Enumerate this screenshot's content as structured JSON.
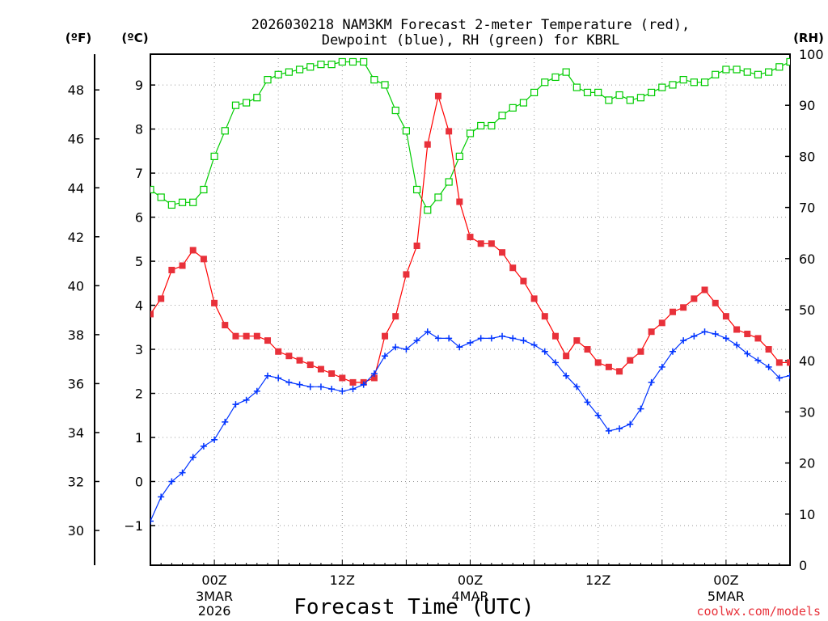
{
  "chart_data": {
    "type": "line",
    "title_line1": "2026030218 NAM3KM Forecast 2-meter Temperature (red),",
    "title_line2": "Dewpoint (blue), RH (green) for KBRL",
    "xlabel": "Forecast Time (UTC)",
    "credit": "coolwx.com/models",
    "units": {
      "f": "(ºF)",
      "c": "(ºC)",
      "rh": "(RH)"
    },
    "x_range_hours": [
      0,
      60
    ],
    "ylim_c": [
      -1.9,
      9.7
    ],
    "ylim_rh": [
      0,
      100
    ],
    "f_ticks": [
      "30",
      "32",
      "34",
      "36",
      "38",
      "40",
      "42",
      "44",
      "46",
      "48"
    ],
    "c_ticks": [
      "−1",
      "0",
      "1",
      "2",
      "3",
      "4",
      "5",
      "6",
      "7",
      "8",
      "9"
    ],
    "rh_ticks": [
      "0",
      "10",
      "20",
      "30",
      "40",
      "50",
      "60",
      "70",
      "80",
      "90",
      "100"
    ],
    "x_ticks": [
      {
        "hour": 6,
        "line1": "00Z",
        "line2": "3MAR",
        "line3": "2026"
      },
      {
        "hour": 18,
        "line1": "12Z",
        "line2": "",
        "line3": ""
      },
      {
        "hour": 30,
        "line1": "00Z",
        "line2": "4MAR",
        "line3": ""
      },
      {
        "hour": 42,
        "line1": "12Z",
        "line2": "",
        "line3": ""
      },
      {
        "hour": 54,
        "line1": "00Z",
        "line2": "5MAR",
        "line3": ""
      }
    ],
    "colors": {
      "temperature": "#ff0000",
      "dewpoint": "#0033ff",
      "rh": "#00cc00"
    },
    "series": [
      {
        "name": "Temperature (°C)",
        "axis": "c",
        "values": [
          3.8,
          4.15,
          4.8,
          4.9,
          5.25,
          5.05,
          4.05,
          3.55,
          3.3,
          3.3,
          3.3,
          3.2,
          2.95,
          2.85,
          2.75,
          2.65,
          2.55,
          2.45,
          2.35,
          2.25,
          2.25,
          2.35,
          3.3,
          3.75,
          4.7,
          5.35,
          7.65,
          8.75,
          7.95,
          6.35,
          5.55,
          5.4,
          5.4,
          5.2,
          4.85,
          4.55,
          4.15,
          3.75,
          3.3,
          2.85,
          3.2,
          3.0,
          2.7,
          2.6,
          2.5,
          2.75,
          2.95,
          3.4,
          3.6,
          3.85,
          3.95,
          4.15,
          4.35,
          4.05,
          3.75,
          3.45,
          3.35,
          3.25,
          3.0,
          2.7,
          2.7
        ]
      },
      {
        "name": "Dewpoint (°C)",
        "axis": "c",
        "values": [
          -0.9,
          -0.35,
          0.0,
          0.2,
          0.55,
          0.8,
          0.95,
          1.35,
          1.75,
          1.85,
          2.05,
          2.4,
          2.35,
          2.25,
          2.2,
          2.15,
          2.15,
          2.1,
          2.05,
          2.1,
          2.2,
          2.45,
          2.85,
          3.05,
          3.0,
          3.2,
          3.4,
          3.25,
          3.25,
          3.05,
          3.15,
          3.25,
          3.25,
          3.3,
          3.25,
          3.2,
          3.1,
          2.95,
          2.7,
          2.4,
          2.15,
          1.8,
          1.5,
          1.15,
          1.2,
          1.3,
          1.65,
          2.25,
          2.6,
          2.95,
          3.2,
          3.3,
          3.4,
          3.35,
          3.25,
          3.1,
          2.9,
          2.75,
          2.6,
          2.35,
          2.4
        ]
      },
      {
        "name": "RH (%)",
        "axis": "rh",
        "values": [
          73.5,
          72,
          70.5,
          71,
          71,
          73.5,
          80,
          85,
          90,
          90.5,
          91.5,
          95,
          96,
          96.5,
          97,
          97.5,
          98,
          98,
          98.5,
          98.5,
          98.5,
          95,
          94,
          89,
          85,
          73.5,
          69.5,
          72,
          75,
          80,
          84.5,
          86,
          86,
          88,
          89.5,
          90.5,
          92.5,
          94.5,
          95.5,
          96.5,
          93.5,
          92.5,
          92.5,
          91,
          92,
          91,
          91.5,
          92.5,
          93.5,
          94,
          95,
          94.5,
          94.5,
          96,
          97,
          97,
          96.5,
          96,
          96.5,
          97.5,
          98.5
        ]
      }
    ]
  }
}
